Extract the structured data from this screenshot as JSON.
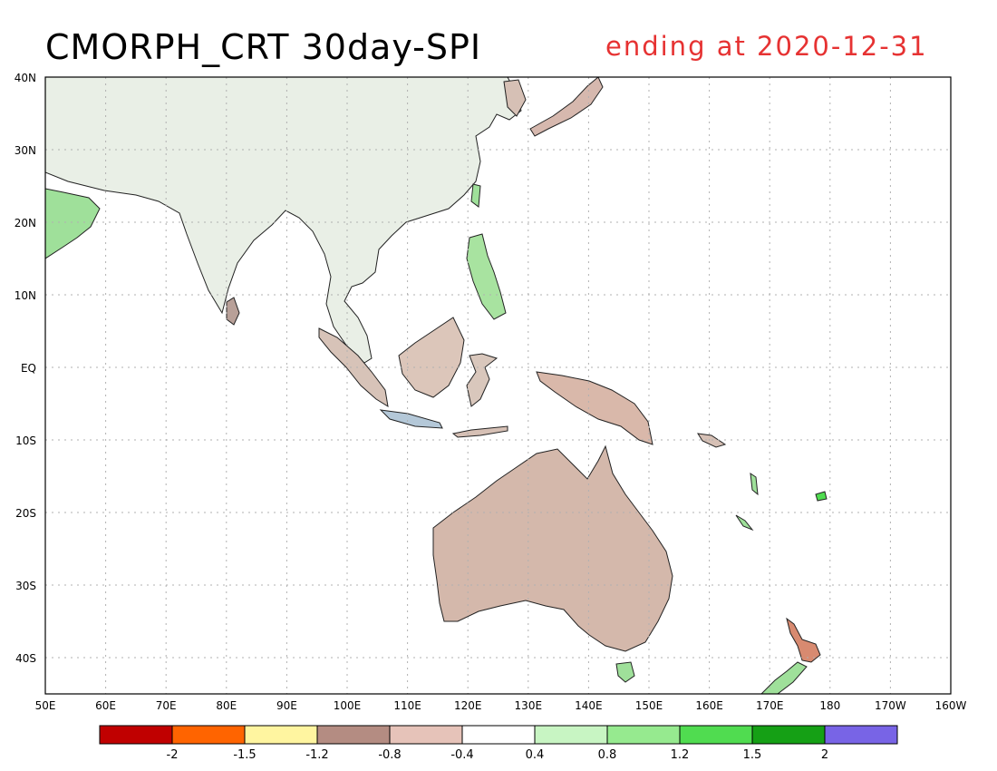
{
  "title": "CMORPH_CRT 30day-SPI",
  "date_label": "ending at 2020-12-31",
  "map": {
    "lat_labels": [
      "40N",
      "30N",
      "20N",
      "10N",
      "EQ",
      "10S",
      "20S",
      "30S",
      "40S"
    ],
    "lon_labels": [
      "50E",
      "60E",
      "70E",
      "80E",
      "90E",
      "100E",
      "110E",
      "120E",
      "130E",
      "140E",
      "150E",
      "160E",
      "170E",
      "180",
      "170W",
      "160W"
    ]
  },
  "legend": {
    "colors": [
      "#c00000",
      "#ff6400",
      "#fff5a0",
      "#b48c82",
      "#e6c3b9",
      "#ffffff",
      "#c8f5c3",
      "#96ea8f",
      "#50dc50",
      "#15a015",
      "#7864e6"
    ],
    "labels": [
      "-2",
      "-1.5",
      "-1.2",
      "-0.8",
      "-0.4",
      "0.4",
      "0.8",
      "1.2",
      "1.5",
      "2"
    ]
  }
}
